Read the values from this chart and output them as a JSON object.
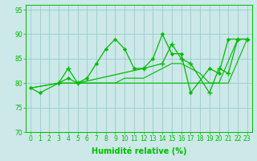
{
  "background_color": "#cce8e8",
  "grid_color": "#99cccc",
  "line_color": "#00bb00",
  "xlabel": "Humidité relative (%)",
  "xlabel_fontsize": 7,
  "tick_fontsize": 5.5,
  "xlim": [
    -0.5,
    23.5
  ],
  "ylim": [
    70,
    96
  ],
  "yticks": [
    70,
    75,
    80,
    85,
    90,
    95
  ],
  "xticks": [
    0,
    1,
    2,
    3,
    4,
    5,
    6,
    7,
    8,
    9,
    10,
    11,
    12,
    13,
    14,
    15,
    16,
    17,
    18,
    19,
    20,
    21,
    22,
    23
  ],
  "x_labels": [
    "0",
    "1",
    "2",
    "3",
    "4",
    "5",
    "6",
    "7",
    "8",
    "9",
    "10",
    "11",
    "12",
    "13",
    "14",
    "15",
    "16",
    "17",
    "18",
    "19",
    "20",
    "21",
    "22",
    "23"
  ],
  "line1_x": [
    0,
    1,
    3,
    4,
    5,
    6,
    7,
    8,
    9,
    10,
    11,
    12,
    13,
    14,
    15,
    16,
    17,
    19,
    20,
    21,
    22,
    23
  ],
  "line1_y": [
    79,
    78,
    80,
    81,
    80,
    81,
    84,
    87,
    89,
    87,
    83,
    83,
    85,
    90,
    86,
    86,
    78,
    83,
    82,
    89,
    89,
    89
  ],
  "line2_x": [
    3,
    4,
    5,
    12,
    14,
    15,
    16,
    17,
    19,
    20,
    21,
    22,
    23
  ],
  "line2_y": [
    80,
    83,
    80,
    83,
    84,
    88,
    85,
    84,
    78,
    83,
    82,
    89,
    89
  ],
  "line3_x": [
    0,
    3,
    5,
    6,
    7,
    8,
    9,
    10,
    11,
    12,
    13,
    14,
    15,
    16,
    17,
    18,
    19,
    20,
    21,
    23
  ],
  "line3_y": [
    79,
    80,
    80,
    80,
    80,
    80,
    80,
    81,
    81,
    81,
    82,
    83,
    84,
    84,
    83,
    82,
    80,
    80,
    80,
    89
  ],
  "line4_x": [
    0,
    3,
    5,
    6,
    7,
    8,
    9,
    10,
    11,
    12,
    13,
    14,
    15,
    16,
    17,
    18,
    19,
    20,
    22,
    23
  ],
  "line4_y": [
    79,
    80,
    80,
    80,
    80,
    80,
    80,
    80,
    80,
    80,
    80,
    80,
    80,
    80,
    80,
    80,
    80,
    80,
    89,
    89
  ]
}
